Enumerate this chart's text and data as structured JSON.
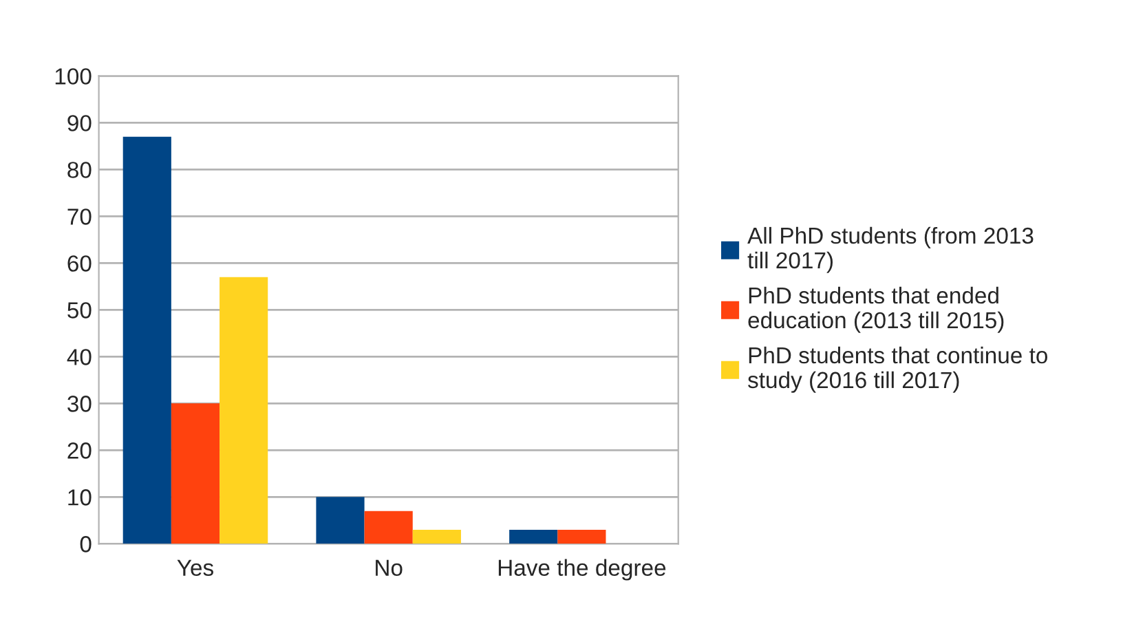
{
  "chart_data": {
    "type": "bar",
    "categories": [
      "Yes",
      "No",
      "Have the degree"
    ],
    "series": [
      {
        "name": "All PhD students (from 2013 till 2017)",
        "color": "#004586",
        "values": [
          87,
          10,
          3
        ]
      },
      {
        "name": "PhD students that ended education (2013 till 2015)",
        "color": "#ff420e",
        "values": [
          30,
          7,
          3
        ]
      },
      {
        "name": "PhD students that continue to study (2016 till 2017)",
        "color": "#ffd320",
        "values": [
          57,
          3,
          null
        ]
      }
    ],
    "ylim": [
      0,
      100
    ],
    "yticks": [
      0,
      10,
      20,
      30,
      40,
      50,
      60,
      70,
      80,
      90,
      100
    ],
    "grid": "y",
    "legend": "right"
  }
}
